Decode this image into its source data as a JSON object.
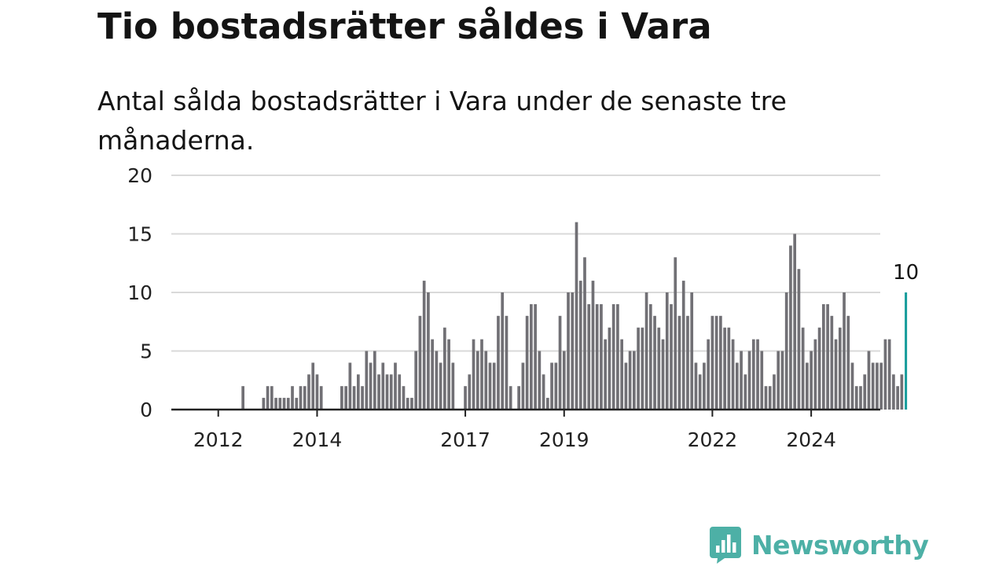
{
  "title": "Tio bostadsrätter såldes i Vara",
  "subtitle": "Antal sålda bostadsrätter i Vara under de senaste tre månaderna.",
  "brand": {
    "name": "Newsworthy",
    "icon": "newsworthy-logo-icon",
    "color": "#4db0a6"
  },
  "colors": {
    "bar": "#717075",
    "highlight": "#139b9a",
    "grid": "#d9d9d9",
    "axis": "#222222"
  },
  "chart_data": {
    "type": "bar",
    "ylim": [
      0,
      20
    ],
    "yticks": [
      0,
      5,
      10,
      15,
      20
    ],
    "xlabels": [
      "2012",
      "2014",
      "2017",
      "2019",
      "2022",
      "2024"
    ],
    "grid": true,
    "highlight_label": "10",
    "values": [
      0,
      0,
      0,
      0,
      0,
      0,
      0,
      0,
      0,
      2,
      0,
      0,
      0,
      0,
      1,
      2,
      2,
      1,
      1,
      1,
      1,
      2,
      1,
      2,
      2,
      3,
      4,
      3,
      2,
      0,
      0,
      0,
      0,
      2,
      2,
      4,
      2,
      3,
      2,
      5,
      4,
      5,
      3,
      4,
      3,
      3,
      4,
      3,
      2,
      1,
      1,
      5,
      8,
      11,
      10,
      6,
      5,
      4,
      7,
      6,
      4,
      0,
      0,
      2,
      3,
      6,
      5,
      6,
      5,
      4,
      4,
      8,
      10,
      8,
      2,
      0,
      2,
      4,
      8,
      9,
      9,
      5,
      3,
      1,
      4,
      4,
      8,
      5,
      10,
      10,
      16,
      11,
      13,
      9,
      11,
      9,
      9,
      6,
      7,
      9,
      9,
      6,
      4,
      5,
      5,
      7,
      7,
      10,
      9,
      8,
      7,
      6,
      10,
      9,
      13,
      8,
      11,
      8,
      10,
      4,
      3,
      4,
      6,
      8,
      8,
      8,
      7,
      7,
      6,
      4,
      5,
      3,
      5,
      6,
      6,
      5,
      2,
      2,
      3,
      5,
      5,
      10,
      14,
      15,
      12,
      7,
      4,
      5,
      6,
      7,
      9,
      9,
      8,
      6,
      7,
      10,
      8,
      4,
      2,
      2,
      3,
      5,
      4,
      4,
      4,
      6,
      6,
      3,
      2,
      3,
      10
    ]
  }
}
